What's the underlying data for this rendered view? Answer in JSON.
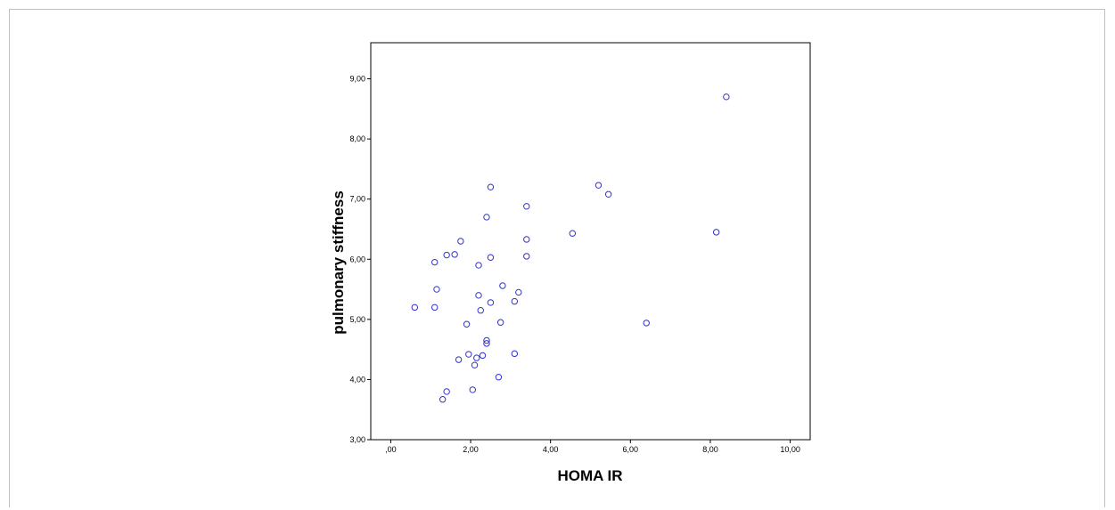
{
  "chart_data": {
    "type": "scatter",
    "title": "",
    "xlabel": "HOMA IR",
    "ylabel": "pulmonary stiffness",
    "xlim": [
      -0.5,
      10.5
    ],
    "ylim": [
      3.0,
      9.6
    ],
    "x_ticks": [
      ",00",
      "2,00",
      "4,00",
      "6,00",
      "8,00",
      "10,00"
    ],
    "x_tick_values": [
      0,
      2,
      4,
      6,
      8,
      10
    ],
    "y_ticks": [
      "3,00",
      "4,00",
      "5,00",
      "6,00",
      "7,00",
      "8,00",
      "9,00"
    ],
    "y_tick_values": [
      3,
      4,
      5,
      6,
      7,
      8,
      9
    ],
    "grid": false,
    "marker_color": "#3333cc",
    "points": [
      {
        "x": 0.6,
        "y": 5.2
      },
      {
        "x": 1.1,
        "y": 5.2
      },
      {
        "x": 1.15,
        "y": 5.5
      },
      {
        "x": 1.1,
        "y": 5.95
      },
      {
        "x": 1.4,
        "y": 6.07
      },
      {
        "x": 1.6,
        "y": 6.08
      },
      {
        "x": 1.75,
        "y": 6.3
      },
      {
        "x": 1.3,
        "y": 3.67
      },
      {
        "x": 1.4,
        "y": 3.8
      },
      {
        "x": 1.7,
        "y": 4.33
      },
      {
        "x": 1.9,
        "y": 4.92
      },
      {
        "x": 1.95,
        "y": 4.42
      },
      {
        "x": 2.05,
        "y": 3.83
      },
      {
        "x": 2.1,
        "y": 4.24
      },
      {
        "x": 2.15,
        "y": 4.36
      },
      {
        "x": 2.2,
        "y": 5.4
      },
      {
        "x": 2.2,
        "y": 5.9
      },
      {
        "x": 2.25,
        "y": 5.15
      },
      {
        "x": 2.3,
        "y": 4.4
      },
      {
        "x": 2.4,
        "y": 4.6
      },
      {
        "x": 2.4,
        "y": 4.65
      },
      {
        "x": 2.4,
        "y": 6.7
      },
      {
        "x": 2.5,
        "y": 5.28
      },
      {
        "x": 2.5,
        "y": 6.03
      },
      {
        "x": 2.5,
        "y": 7.2
      },
      {
        "x": 2.7,
        "y": 4.04
      },
      {
        "x": 2.75,
        "y": 4.95
      },
      {
        "x": 2.8,
        "y": 5.56
      },
      {
        "x": 3.1,
        "y": 5.3
      },
      {
        "x": 3.1,
        "y": 4.43
      },
      {
        "x": 3.2,
        "y": 5.45
      },
      {
        "x": 3.4,
        "y": 6.05
      },
      {
        "x": 3.4,
        "y": 6.33
      },
      {
        "x": 3.4,
        "y": 6.88
      },
      {
        "x": 4.55,
        "y": 6.43
      },
      {
        "x": 5.2,
        "y": 7.23
      },
      {
        "x": 5.45,
        "y": 7.08
      },
      {
        "x": 6.4,
        "y": 4.94
      },
      {
        "x": 8.15,
        "y": 6.45
      },
      {
        "x": 8.4,
        "y": 8.7
      }
    ]
  }
}
